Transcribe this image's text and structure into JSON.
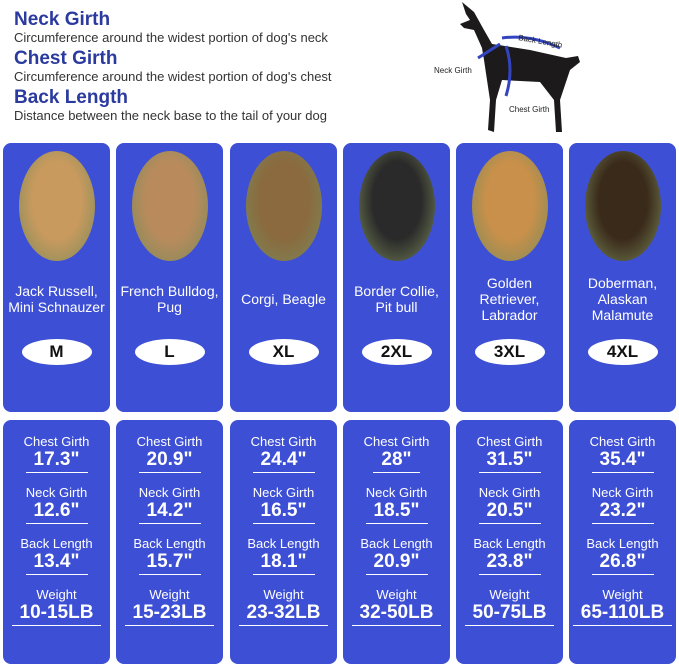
{
  "legend": [
    {
      "title": "Neck Girth",
      "desc": "Circumference around the widest portion of dog's neck"
    },
    {
      "title": "Chest Girth",
      "desc": "Circumference around the widest portion of dog's chest"
    },
    {
      "title": "Back Length",
      "desc": "Distance between the neck base to the tail of your dog"
    }
  ],
  "diagram": {
    "back": "Back Length",
    "neck": "Neck Girth",
    "chest": "Chest Girth"
  },
  "labels": {
    "chest": "Chest Girth",
    "neck": "Neck Girth",
    "back": "Back Length",
    "weight": "Weight"
  },
  "accent": "#3d4fd4",
  "sizes": [
    {
      "breed": "Jack Russell, Mini Schnauzer",
      "size": "M",
      "chest": "17.3\"",
      "neck": "12.6\"",
      "back": "13.4\"",
      "weight": "10-15LB",
      "photo": "#c99a5e"
    },
    {
      "breed": "French Bulldog, Pug",
      "size": "L",
      "chest": "20.9\"",
      "neck": "14.2\"",
      "back": "15.7\"",
      "weight": "15-23LB",
      "photo": "#b98b5c"
    },
    {
      "breed": "Corgi, Beagle",
      "size": "XL",
      "chest": "24.4\"",
      "neck": "16.5\"",
      "back": "18.1\"",
      "weight": "23-32LB",
      "photo": "#8a6a3e"
    },
    {
      "breed": "Border Collie, Pit bull",
      "size": "2XL",
      "chest": "28\"",
      "neck": "18.5\"",
      "back": "20.9\"",
      "weight": "32-50LB",
      "photo": "#2a2a2a"
    },
    {
      "breed": "Golden Retriever, Labrador",
      "size": "3XL",
      "chest": "31.5\"",
      "neck": "20.5\"",
      "back": "23.8\"",
      "weight": "50-75LB",
      "photo": "#c8904a"
    },
    {
      "breed": "Doberman, Alaskan Malamute",
      "size": "4XL",
      "chest": "35.4\"",
      "neck": "23.2\"",
      "back": "26.8\"",
      "weight": "65-110LB",
      "photo": "#3a2a1a"
    }
  ]
}
